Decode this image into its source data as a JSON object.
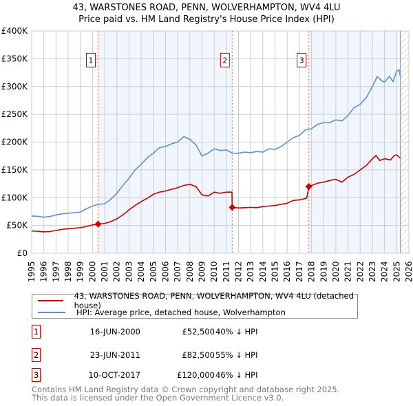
{
  "header": {
    "title": "43, WARSTONES ROAD, PENN, WOLVERHAMPTON, WV4 4LU",
    "subtitle": "Price paid vs. HM Land Registry's House Price Index (HPI)"
  },
  "chart_data": {
    "type": "line",
    "title": "43, WARSTONES ROAD, PENN, WOLVERHAMPTON, WV4 4LU",
    "subtitle": "Price paid vs. HM Land Registry's House Price Index (HPI)",
    "xlim": [
      1995,
      2026
    ],
    "ylim": [
      0,
      400000
    ],
    "yticks": [
      0,
      50000,
      100000,
      150000,
      200000,
      250000,
      300000,
      350000,
      400000
    ],
    "ytick_labels": [
      "£0",
      "£50K",
      "£100K",
      "£150K",
      "£200K",
      "£250K",
      "£300K",
      "£350K",
      "£400K"
    ],
    "xticks": [
      "1995",
      "1996",
      "1997",
      "1998",
      "1999",
      "2000",
      "2001",
      "2002",
      "2003",
      "2004",
      "2005",
      "2006",
      "2007",
      "2008",
      "2009",
      "2010",
      "2011",
      "2012",
      "2013",
      "2014",
      "2015",
      "2016",
      "2017",
      "2018",
      "2019",
      "2020",
      "2021",
      "2022",
      "2023",
      "2024",
      "2025",
      "2026"
    ],
    "grid": true,
    "shaded_ranges": [
      [
        2000.46,
        2011.48
      ],
      [
        2017.78,
        2025.3
      ]
    ],
    "hatched_range": [
      2025.3,
      2026
    ],
    "series": [
      {
        "name": "43, WARSTONES ROAD, PENN, WOLVERHAMPTON, WV4 4LU (detached house)",
        "color": "#cc0000",
        "points": [
          [
            1995,
            40000
          ],
          [
            1995.5,
            39500
          ],
          [
            1996,
            38500
          ],
          [
            1996.5,
            39000
          ],
          [
            1997,
            41000
          ],
          [
            1997.5,
            43000
          ],
          [
            1998,
            44000
          ],
          [
            1998.5,
            45000
          ],
          [
            1999,
            46000
          ],
          [
            1999.5,
            48000
          ],
          [
            2000,
            51000
          ],
          [
            2000.46,
            52500
          ],
          [
            2001,
            53500
          ],
          [
            2001.5,
            57000
          ],
          [
            2002,
            62000
          ],
          [
            2002.5,
            69000
          ],
          [
            2003,
            78000
          ],
          [
            2003.5,
            86000
          ],
          [
            2004,
            93000
          ],
          [
            2004.5,
            99000
          ],
          [
            2005,
            106000
          ],
          [
            2005.5,
            110000
          ],
          [
            2006,
            112000
          ],
          [
            2006.5,
            115000
          ],
          [
            2007,
            118000
          ],
          [
            2007.5,
            122000
          ],
          [
            2008,
            124000
          ],
          [
            2008.5,
            120000
          ],
          [
            2009,
            105000
          ],
          [
            2009.5,
            103000
          ],
          [
            2010,
            110000
          ],
          [
            2010.5,
            108000
          ],
          [
            2011,
            110000
          ],
          [
            2011.46,
            110000
          ],
          [
            2011.48,
            82500
          ],
          [
            2012,
            81500
          ],
          [
            2012.5,
            82000
          ],
          [
            2013,
            82500
          ],
          [
            2013.5,
            82000
          ],
          [
            2014,
            84000
          ],
          [
            2014.5,
            85000
          ],
          [
            2015,
            86000
          ],
          [
            2015.5,
            88000
          ],
          [
            2016,
            90000
          ],
          [
            2016.5,
            95000
          ],
          [
            2017,
            96000
          ],
          [
            2017.6,
            99000
          ],
          [
            2017.78,
            120000
          ],
          [
            2018,
            122000
          ],
          [
            2018.5,
            126000
          ],
          [
            2019,
            128000
          ],
          [
            2019.5,
            131000
          ],
          [
            2020,
            133000
          ],
          [
            2020.5,
            128000
          ],
          [
            2021,
            137000
          ],
          [
            2021.5,
            142000
          ],
          [
            2022,
            150000
          ],
          [
            2022.5,
            158000
          ],
          [
            2023,
            170000
          ],
          [
            2023.3,
            176000
          ],
          [
            2023.6,
            167000
          ],
          [
            2024,
            170000
          ],
          [
            2024.5,
            168000
          ],
          [
            2024.8,
            176000
          ],
          [
            2025,
            177000
          ],
          [
            2025.3,
            171000
          ]
        ]
      },
      {
        "name": "HPI: Average price, detached house, Wolverhampton",
        "color": "#5f8fd0",
        "points": [
          [
            1995,
            67000
          ],
          [
            1995.5,
            66500
          ],
          [
            1996,
            65000
          ],
          [
            1996.5,
            66000
          ],
          [
            1997,
            69000
          ],
          [
            1997.5,
            71000
          ],
          [
            1998,
            72000
          ],
          [
            1998.5,
            73000
          ],
          [
            1999,
            74000
          ],
          [
            1999.5,
            80000
          ],
          [
            2000,
            85000
          ],
          [
            2000.5,
            88000
          ],
          [
            2001,
            89000
          ],
          [
            2001.5,
            97000
          ],
          [
            2002,
            108000
          ],
          [
            2002.5,
            122000
          ],
          [
            2003,
            135000
          ],
          [
            2003.5,
            150000
          ],
          [
            2004,
            160000
          ],
          [
            2004.5,
            172000
          ],
          [
            2005,
            180000
          ],
          [
            2005.5,
            190000
          ],
          [
            2006,
            192000
          ],
          [
            2006.5,
            197000
          ],
          [
            2007,
            200000
          ],
          [
            2007.5,
            210000
          ],
          [
            2008,
            205000
          ],
          [
            2008.5,
            195000
          ],
          [
            2009,
            175000
          ],
          [
            2009.5,
            180000
          ],
          [
            2010,
            188000
          ],
          [
            2010.5,
            185000
          ],
          [
            2011,
            186000
          ],
          [
            2011.5,
            180000
          ],
          [
            2012,
            180000
          ],
          [
            2012.5,
            182000
          ],
          [
            2013,
            181000
          ],
          [
            2013.5,
            183000
          ],
          [
            2014,
            182000
          ],
          [
            2014.5,
            188000
          ],
          [
            2015,
            187000
          ],
          [
            2015.5,
            192000
          ],
          [
            2016,
            200000
          ],
          [
            2016.5,
            208000
          ],
          [
            2017,
            212000
          ],
          [
            2017.5,
            222000
          ],
          [
            2018,
            224000
          ],
          [
            2018.5,
            232000
          ],
          [
            2019,
            235000
          ],
          [
            2019.5,
            235000
          ],
          [
            2020,
            240000
          ],
          [
            2020.5,
            238000
          ],
          [
            2021,
            248000
          ],
          [
            2021.5,
            262000
          ],
          [
            2022,
            268000
          ],
          [
            2022.5,
            280000
          ],
          [
            2023,
            300000
          ],
          [
            2023.4,
            318000
          ],
          [
            2023.8,
            310000
          ],
          [
            2024,
            308000
          ],
          [
            2024.4,
            318000
          ],
          [
            2024.7,
            309000
          ],
          [
            2025,
            328000
          ],
          [
            2025.2,
            330000
          ],
          [
            2025.3,
            318000
          ]
        ]
      }
    ],
    "sales": [
      {
        "id": "1",
        "year": 2000.46,
        "value": 52500
      },
      {
        "id": "2",
        "year": 2011.48,
        "value": 82500
      },
      {
        "id": "3",
        "year": 2017.78,
        "value": 120000
      }
    ]
  },
  "legend": [
    {
      "label": "43, WARSTONES ROAD, PENN, WOLVERHAMPTON, WV4 4LU (detached house)",
      "color": "#cc0000"
    },
    {
      "label": "HPI: Average price, detached house, Wolverhampton",
      "color": "#5f8fd0"
    }
  ],
  "sales_table": [
    {
      "id": "1",
      "date": "16-JUN-2000",
      "price": "£52,500",
      "hpi": "40% ↓ HPI"
    },
    {
      "id": "2",
      "date": "23-JUN-2011",
      "price": "£82,500",
      "hpi": "55% ↓ HPI"
    },
    {
      "id": "3",
      "date": "10-OCT-2017",
      "price": "£120,000",
      "hpi": "46% ↓ HPI"
    }
  ],
  "footer": {
    "line1": "Contains HM Land Registry data © Crown copyright and database right 2025.",
    "line2": "This data is licensed under the Open Government Licence v3.0."
  }
}
